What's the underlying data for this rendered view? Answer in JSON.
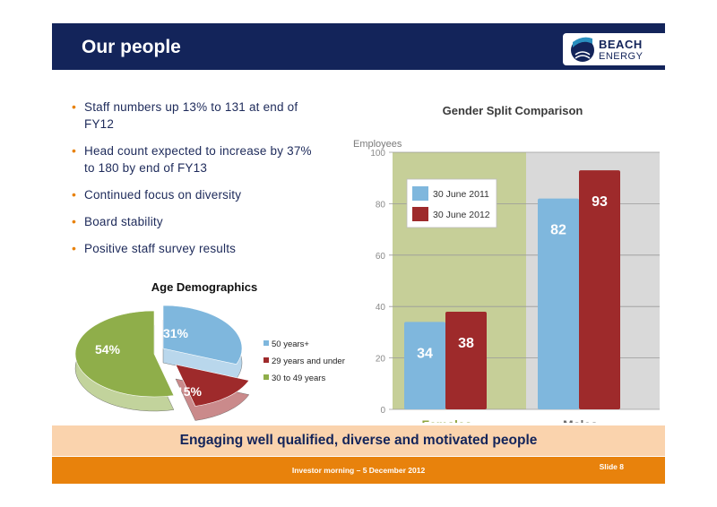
{
  "header": {
    "title": "Our people"
  },
  "logo": {
    "line1": "BEACH",
    "line2": "ENERGY",
    "colors": {
      "navy": "#13245a",
      "teal": "#2a8fbf"
    }
  },
  "bullets": [
    "Staff numbers up 13% to 131 at end of FY12",
    "Head count expected to increase by 37% to 180 by end of FY13",
    "Continued focus on diversity",
    "Board stability",
    "Positive staff survey results"
  ],
  "banner": "Engaging well qualified, diverse and motivated people",
  "footer": {
    "text": "Investor morning – 5 December 2012",
    "slide": "Slide 8"
  },
  "colors": {
    "navy": "#13245a",
    "orange": "#e8820c",
    "peach": "#fad3ad"
  },
  "chart_data": [
    {
      "type": "bar",
      "title": "Gender Split Comparison",
      "ylabel": "Employees",
      "categories": [
        "Females",
        "Males"
      ],
      "series": [
        {
          "name": "30 June 2011",
          "values": [
            34,
            82
          ],
          "color": "#7fb7dd"
        },
        {
          "name": "30 June 2012",
          "values": [
            38,
            93
          ],
          "color": "#9e2a2b"
        }
      ],
      "ylim": [
        0,
        100
      ],
      "yticks": [
        0,
        20,
        40,
        60,
        80,
        100
      ],
      "grid": true,
      "legend": "top-left",
      "category_colors": [
        "#c6cf98",
        "#d9d9d9"
      ]
    },
    {
      "type": "pie",
      "title": "Age Demographics",
      "labels": [
        "50 years+",
        "29 years and under",
        "30 to 49 years"
      ],
      "values": [
        31,
        15,
        54
      ],
      "value_labels": [
        "31%",
        "15%",
        "54%"
      ],
      "colors": [
        "#7fb7dd",
        "#9e2a2b",
        "#8fae4a"
      ],
      "legend": "right"
    }
  ]
}
